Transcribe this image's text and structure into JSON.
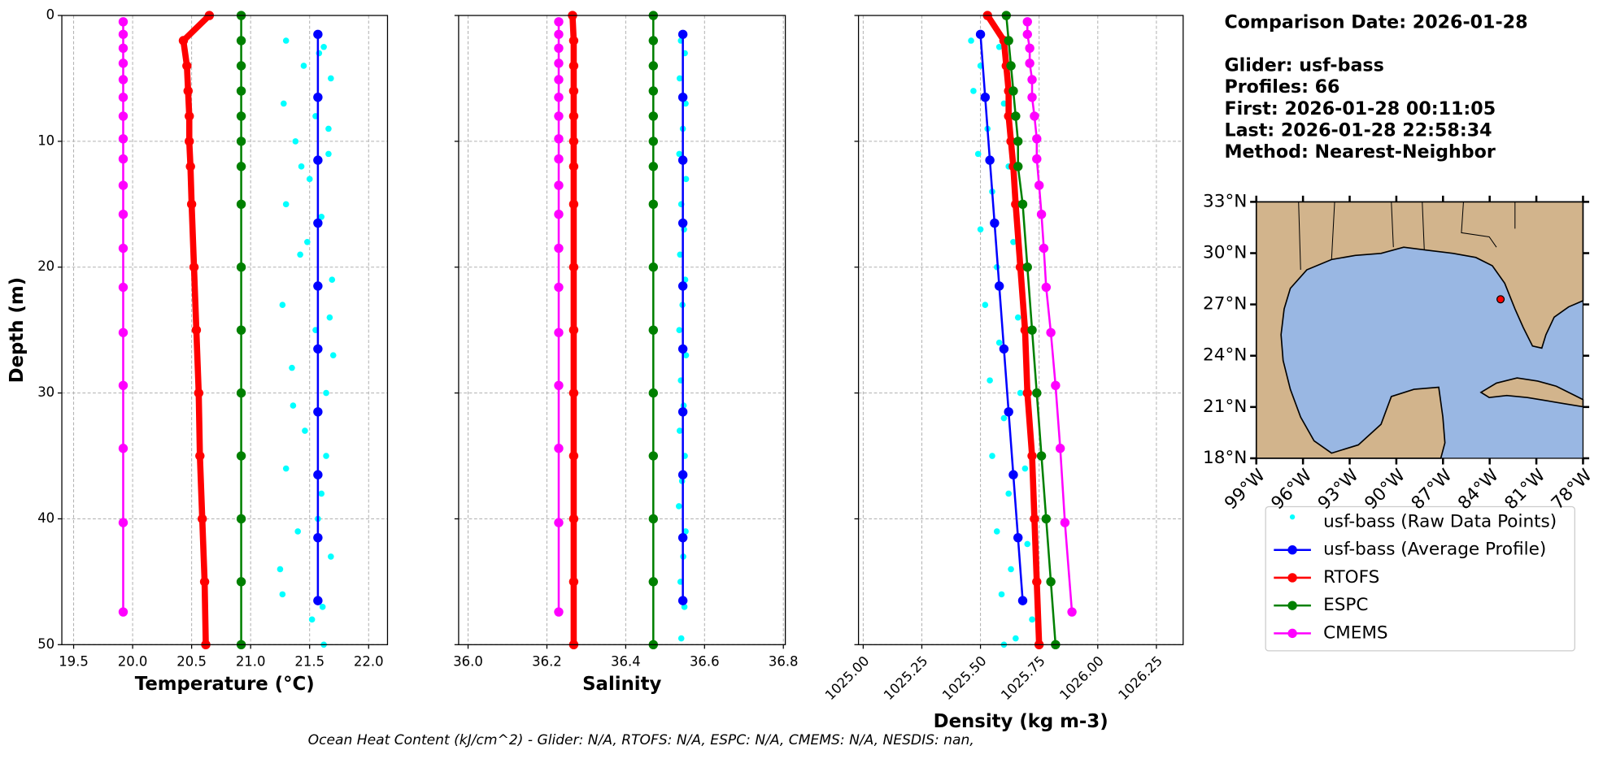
{
  "chart_data": [
    {
      "type": "line",
      "xlabel": "Temperature (°C)",
      "ylabel": "Depth (m)",
      "xlim": [
        19.4,
        22.16
      ],
      "xticks": [
        19.5,
        {
          "value": 20.0,
          "label": "20.0"
        },
        20.5,
        {
          "value": 21.0,
          "label": "21.0"
        },
        21.5,
        {
          "value": 22.0,
          "label": "22.0"
        }
      ],
      "ylim": [
        0,
        50
      ],
      "yticks": [
        0,
        10,
        20,
        30,
        40,
        50
      ],
      "y_inverted": true,
      "grid": true,
      "series": [
        {
          "name": "usf-bass (Raw Data Points)",
          "color": "#00ffff",
          "mode": "markers",
          "x": [
            21.3,
            21.62,
            21.45,
            21.68,
            21.28,
            21.55,
            21.38,
            21.66,
            21.5,
            21.3,
            21.6,
            21.42,
            21.69,
            21.27,
            21.55,
            21.35,
            21.64,
            21.46,
            21.3,
            21.6,
            21.4,
            21.68,
            21.27,
            21.52,
            21.62,
            21.58,
            21.66,
            21.48,
            21.7,
            21.36,
            21.64,
            21.57,
            21.25,
            21.61,
            21.43,
            21.67
          ],
          "y": [
            2,
            2.5,
            4,
            5,
            7,
            8,
            10,
            11,
            13,
            15,
            16,
            19,
            21,
            23,
            25,
            28,
            30,
            33,
            36,
            38,
            41,
            43,
            46,
            48,
            50,
            3,
            9,
            18,
            27,
            31,
            35,
            40,
            44,
            47,
            12,
            24
          ]
        },
        {
          "name": "usf-bass (Average Profile)",
          "color": "#0000ff",
          "mode": "lines+markers",
          "line_width": 2,
          "x": [
            21.57,
            21.57,
            21.57,
            21.57,
            21.57,
            21.57,
            21.57,
            21.57,
            21.57,
            21.57
          ],
          "y": [
            1.5,
            6.5,
            11.5,
            16.5,
            21.5,
            26.5,
            31.5,
            36.5,
            41.5,
            46.5
          ]
        },
        {
          "name": "RTOFS",
          "color": "#ff0000",
          "mode": "lines+markers",
          "line_width": 6,
          "x": [
            20.65,
            20.43,
            20.46,
            20.47,
            20.48,
            20.48,
            20.49,
            20.5,
            20.52,
            20.54,
            20.56,
            20.57,
            20.59,
            20.61,
            20.62
          ],
          "y": [
            0,
            2,
            4,
            6,
            8,
            10,
            12,
            15,
            20,
            25,
            30,
            35,
            40,
            45,
            50
          ]
        },
        {
          "name": "ESPC",
          "color": "#008000",
          "mode": "lines+markers",
          "line_width": 2,
          "x": [
            20.92,
            20.92,
            20.92,
            20.92,
            20.92,
            20.92,
            20.92,
            20.92,
            20.92,
            20.92,
            20.92,
            20.92,
            20.92,
            20.92,
            20.92
          ],
          "y": [
            0,
            2,
            4,
            6,
            8,
            10,
            12,
            15,
            20,
            25,
            30,
            35,
            40,
            45,
            50
          ]
        },
        {
          "name": "CMEMS",
          "color": "#ff00ff",
          "mode": "lines+markers",
          "line_width": 2,
          "x": [
            19.92,
            19.92,
            19.92,
            19.92,
            19.92,
            19.92,
            19.92,
            19.92,
            19.92,
            19.92,
            19.92,
            19.92,
            19.92,
            19.92,
            19.92,
            19.92,
            19.92,
            19.92
          ],
          "y": [
            0.5,
            1.5,
            2.6,
            3.8,
            5.1,
            6.5,
            8,
            9.8,
            11.4,
            13.5,
            15.8,
            18.5,
            21.6,
            25.2,
            29.4,
            34.4,
            40.3,
            47.4
          ]
        }
      ]
    },
    {
      "type": "line",
      "xlabel": "Salinity",
      "xlim": [
        35.976,
        36.805
      ],
      "xticks": [
        {
          "value": 36.0,
          "label": "36.0"
        },
        36.2,
        36.4,
        36.6,
        36.8
      ],
      "ylim": [
        0,
        50
      ],
      "yticks": [
        0,
        10,
        20,
        30,
        40,
        50
      ],
      "y_inverted": true,
      "grid": true,
      "series": [
        {
          "color": "#00ffff",
          "mode": "markers",
          "x": [
            36.54,
            36.55,
            36.537,
            36.552,
            36.545,
            36.536,
            36.553,
            36.541,
            36.548,
            36.538,
            36.551,
            36.544,
            36.536,
            36.553,
            36.54,
            36.547,
            36.537,
            36.55,
            36.543,
            36.535,
            36.552,
            36.546,
            36.539,
            36.549,
            36.541
          ],
          "y": [
            2,
            3,
            5,
            7,
            9,
            11,
            13,
            15,
            17,
            19,
            21,
            23,
            25,
            27,
            29,
            31,
            33,
            35,
            37,
            39,
            41,
            43,
            45,
            47,
            49.5
          ]
        },
        {
          "color": "#0000ff",
          "mode": "lines+markers",
          "line_width": 2,
          "x": [
            36.545,
            36.545,
            36.545,
            36.545,
            36.545,
            36.545,
            36.545,
            36.545,
            36.545,
            36.545
          ],
          "y": [
            1.5,
            6.5,
            11.5,
            16.5,
            21.5,
            26.5,
            31.5,
            36.5,
            41.5,
            46.5
          ]
        },
        {
          "color": "#ff0000",
          "mode": "lines+markers",
          "line_width": 6,
          "x": [
            36.265,
            36.268,
            36.268,
            36.268,
            36.268,
            36.268,
            36.268,
            36.268,
            36.268,
            36.268,
            36.268,
            36.268,
            36.268,
            36.268,
            36.268
          ],
          "y": [
            0,
            2,
            4,
            6,
            8,
            10,
            12,
            15,
            20,
            25,
            30,
            35,
            40,
            45,
            50
          ]
        },
        {
          "color": "#008000",
          "mode": "lines+markers",
          "line_width": 2,
          "x": [
            36.47,
            36.47,
            36.47,
            36.47,
            36.47,
            36.47,
            36.47,
            36.47,
            36.47,
            36.47,
            36.47,
            36.47,
            36.47,
            36.47,
            36.47
          ],
          "y": [
            0,
            2,
            4,
            6,
            8,
            10,
            12,
            15,
            20,
            25,
            30,
            35,
            40,
            45,
            50
          ]
        },
        {
          "color": "#ff00ff",
          "mode": "lines+markers",
          "line_width": 2,
          "x": [
            36.23,
            36.23,
            36.23,
            36.23,
            36.23,
            36.23,
            36.23,
            36.23,
            36.23,
            36.23,
            36.23,
            36.23,
            36.23,
            36.23,
            36.23,
            36.23,
            36.23,
            36.23
          ],
          "y": [
            0.5,
            1.5,
            2.6,
            3.8,
            5.1,
            6.5,
            8,
            9.8,
            11.4,
            13.5,
            15.8,
            18.5,
            21.6,
            25.2,
            29.4,
            34.4,
            40.3,
            47.4
          ]
        }
      ]
    },
    {
      "type": "line",
      "xlabel": "Density (kg m-3)",
      "xlim": [
        1024.98,
        1026.364
      ],
      "xticks": [
        {
          "value": 1025.0,
          "label": "1025.00"
        },
        1025.25,
        {
          "value": 1025.5,
          "label": "1025.50"
        },
        1025.75,
        {
          "value": 1026.0,
          "label": "1026.00"
        },
        1026.25
      ],
      "ylim": [
        0,
        50
      ],
      "yticks": [
        0,
        10,
        20,
        30,
        40,
        50
      ],
      "y_inverted": true,
      "grid": true,
      "series": [
        {
          "color": "#00ffff",
          "mode": "markers",
          "x": [
            1025.46,
            1025.58,
            1025.5,
            1025.47,
            1025.6,
            1025.53,
            1025.49,
            1025.62,
            1025.55,
            1025.5,
            1025.64,
            1025.57,
            1025.52,
            1025.66,
            1025.58,
            1025.54,
            1025.67,
            1025.6,
            1025.55,
            1025.69,
            1025.62,
            1025.57,
            1025.7,
            1025.63,
            1025.59,
            1025.72,
            1025.65,
            1025.6
          ],
          "y": [
            2,
            2.5,
            4,
            6,
            7,
            9,
            11,
            12,
            14,
            17,
            18,
            20,
            23,
            24,
            26,
            29,
            30,
            32,
            35,
            36,
            38,
            41,
            42,
            44,
            46,
            48,
            49.5,
            50
          ]
        },
        {
          "color": "#0000ff",
          "mode": "lines+markers",
          "line_width": 2,
          "x": [
            1025.5,
            1025.52,
            1025.54,
            1025.56,
            1025.58,
            1025.6,
            1025.62,
            1025.64,
            1025.66,
            1025.68
          ],
          "y": [
            1.5,
            6.5,
            11.5,
            16.5,
            21.5,
            26.5,
            31.5,
            36.5,
            41.5,
            46.5
          ]
        },
        {
          "color": "#ff0000",
          "mode": "lines+markers",
          "line_width": 6,
          "x": [
            1025.53,
            1025.6,
            1025.61,
            1025.62,
            1025.62,
            1025.63,
            1025.64,
            1025.65,
            1025.67,
            1025.69,
            1025.7,
            1025.72,
            1025.73,
            1025.74,
            1025.75
          ],
          "y": [
            0,
            2,
            4,
            6,
            8,
            10,
            12,
            15,
            20,
            25,
            30,
            35,
            40,
            45,
            50
          ]
        },
        {
          "color": "#008000",
          "mode": "lines+markers",
          "line_width": 2,
          "x": [
            1025.61,
            1025.62,
            1025.63,
            1025.64,
            1025.65,
            1025.66,
            1025.66,
            1025.68,
            1025.7,
            1025.72,
            1025.74,
            1025.76,
            1025.78,
            1025.8,
            1025.82
          ],
          "y": [
            0,
            2,
            4,
            6,
            8,
            10,
            12,
            15,
            20,
            25,
            30,
            35,
            40,
            45,
            50
          ]
        },
        {
          "color": "#ff00ff",
          "mode": "lines+markers",
          "line_width": 2,
          "x": [
            1025.7,
            1025.7,
            1025.71,
            1025.71,
            1025.72,
            1025.72,
            1025.73,
            1025.74,
            1025.74,
            1025.75,
            1025.76,
            1025.77,
            1025.78,
            1025.8,
            1025.82,
            1025.84,
            1025.86,
            1025.89
          ],
          "y": [
            0.5,
            1.5,
            2.6,
            3.8,
            5.1,
            6.5,
            8,
            9.8,
            11.4,
            13.5,
            15.8,
            18.5,
            21.6,
            25.2,
            29.4,
            34.4,
            40.3,
            47.4
          ]
        }
      ]
    }
  ],
  "info": [
    "Comparison Date: 2026-01-28",
    "Glider: usf-bass",
    "Profiles: 66",
    "First: 2026-01-28 00:11:05",
    "Last: 2026-01-28 22:58:34",
    "Method: Nearest-Neighbor"
  ],
  "map": {
    "xlim": [
      -99,
      -78
    ],
    "ylim": [
      18,
      33
    ],
    "xticks": [
      {
        "value": -99,
        "label": "99°W"
      },
      {
        "value": -96,
        "label": "96°W"
      },
      {
        "value": -93,
        "label": "93°W"
      },
      {
        "value": -90,
        "label": "90°W"
      },
      {
        "value": -87,
        "label": "87°W"
      },
      {
        "value": -84,
        "label": "84°W"
      },
      {
        "value": -81,
        "label": "81°W"
      },
      {
        "value": -78,
        "label": "78°W"
      }
    ],
    "yticks": [
      {
        "value": 18,
        "label": "18°N"
      },
      {
        "value": 21,
        "label": "21°N"
      },
      {
        "value": 24,
        "label": "24°N"
      },
      {
        "value": 27,
        "label": "27°N"
      },
      {
        "value": 30,
        "label": "30°N"
      },
      {
        "value": 33,
        "label": "33°N"
      }
    ],
    "glider_position": {
      "lon": -83.3,
      "lat": 27.3
    },
    "color": "#ff0000"
  },
  "footer": "Ocean Heat Content (kJ/cm^2) - Glider: N/A,  RTOFS: N/A,  ESPC: N/A,  CMEMS: N/A,  NESDIS: nan,"
}
